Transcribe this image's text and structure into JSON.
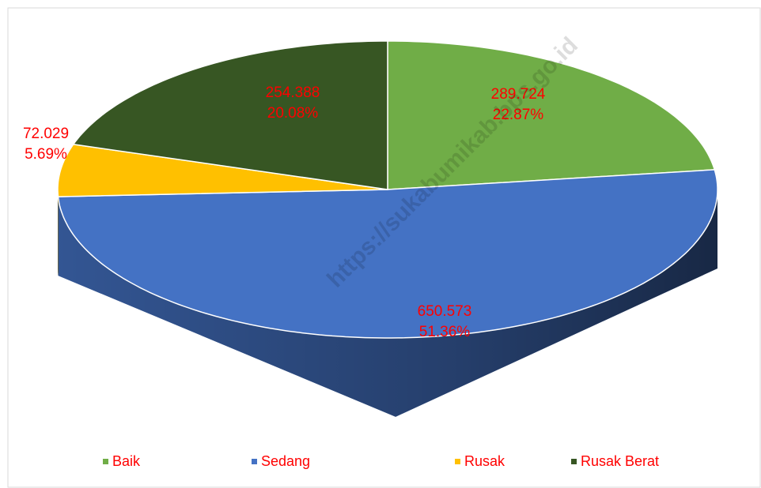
{
  "chart_data": {
    "type": "pie",
    "categories": [
      "Baik",
      "Sedang",
      "Rusak",
      "Rusak Berat"
    ],
    "values": [
      289.724,
      650.573,
      72.029,
      254.388
    ],
    "percentages": [
      22.87,
      51.36,
      5.69,
      20.08
    ],
    "percentage_labels": [
      "22.87%",
      "51.36%",
      "5.69%",
      "20.08%"
    ],
    "colors": [
      "#70ad47",
      "#4472c4",
      "#ffc000",
      "#375623"
    ],
    "legend": "bottom",
    "watermark": "https://sukabumikab.bps.go.id"
  }
}
